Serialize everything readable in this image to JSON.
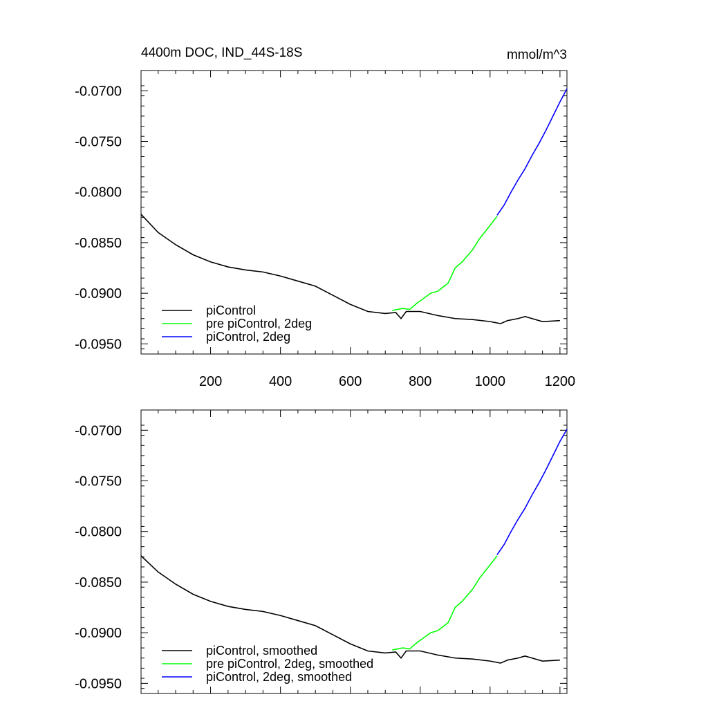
{
  "panel_title_left": "4400m DOC, IND_44S-18S",
  "panel_title_right": "mmol/m^3",
  "colors": {
    "piControl": "#000000",
    "pre_piControl_2deg": "#00ff00",
    "piControl_2deg": "#0000ff"
  },
  "chart_data": [
    {
      "type": "line",
      "title": "4400m DOC, IND_44S-18S",
      "units_label": "mmol/m^3",
      "xlim": [
        1,
        1220
      ],
      "ylim": [
        -0.096,
        -0.068
      ],
      "x_ticks": [
        200,
        400,
        600,
        800,
        1000,
        1200
      ],
      "x_tick_labels": [
        "200",
        "400",
        "600",
        "800",
        "1000",
        "1200"
      ],
      "y_ticks": [
        -0.07,
        -0.075,
        -0.08,
        -0.085,
        -0.09,
        -0.095
      ],
      "y_tick_labels": [
        "-0.0700",
        "-0.0750",
        "-0.0800",
        "-0.0850",
        "-0.0900",
        "-0.0950"
      ],
      "legend_position": "bottom-left",
      "series": [
        {
          "name": "piControl",
          "color": "#000000",
          "x": [
            1,
            50,
            100,
            150,
            200,
            250,
            300,
            350,
            400,
            450,
            500,
            550,
            600,
            650,
            700,
            730,
            745,
            760,
            800,
            850,
            900,
            950,
            1000,
            1030,
            1050,
            1080,
            1100,
            1150,
            1200
          ],
          "y": [
            -0.0822,
            -0.084,
            -0.0852,
            -0.0862,
            -0.0869,
            -0.0874,
            -0.0877,
            -0.0879,
            -0.0883,
            -0.0888,
            -0.0893,
            -0.0902,
            -0.0911,
            -0.0918,
            -0.092,
            -0.0919,
            -0.0925,
            -0.0918,
            -0.0918,
            -0.0922,
            -0.0925,
            -0.0926,
            -0.0928,
            -0.093,
            -0.0927,
            -0.0925,
            -0.0923,
            -0.0928,
            -0.0927
          ]
        },
        {
          "name": "pre piControl, 2deg",
          "color": "#00ff00",
          "x": [
            720,
            750,
            770,
            790,
            810,
            830,
            850,
            880,
            900,
            920,
            950,
            970,
            1000,
            1020
          ],
          "y": [
            -0.0917,
            -0.0915,
            -0.0916,
            -0.091,
            -0.0905,
            -0.09,
            -0.0898,
            -0.089,
            -0.0875,
            -0.0869,
            -0.0857,
            -0.0846,
            -0.0833,
            -0.0824
          ]
        },
        {
          "name": "piControl, 2deg",
          "color": "#0000ff",
          "x": [
            1020,
            1040,
            1060,
            1080,
            1100,
            1120,
            1140,
            1160,
            1180,
            1200,
            1220
          ],
          "y": [
            -0.0823,
            -0.0813,
            -0.08,
            -0.0788,
            -0.0777,
            -0.0764,
            -0.0752,
            -0.0739,
            -0.0725,
            -0.0711,
            -0.0698
          ]
        }
      ]
    },
    {
      "type": "line",
      "xlim": [
        1,
        1220
      ],
      "ylim": [
        -0.096,
        -0.068
      ],
      "x_ticks": [
        200,
        400,
        600,
        800,
        1000,
        1200
      ],
      "y_ticks": [
        -0.07,
        -0.075,
        -0.08,
        -0.085,
        -0.09,
        -0.095
      ],
      "y_tick_labels": [
        "-0.0700",
        "-0.0750",
        "-0.0800",
        "-0.0850",
        "-0.0900",
        "-0.0950"
      ],
      "legend_position": "bottom-left",
      "series": [
        {
          "name": "piControl, smoothed",
          "color": "#000000",
          "x": [
            1,
            50,
            100,
            150,
            200,
            250,
            300,
            350,
            400,
            450,
            500,
            550,
            600,
            650,
            700,
            730,
            745,
            760,
            800,
            850,
            900,
            950,
            1000,
            1030,
            1050,
            1080,
            1100,
            1150,
            1200
          ],
          "y": [
            -0.0824,
            -0.084,
            -0.0852,
            -0.0862,
            -0.0869,
            -0.0874,
            -0.0877,
            -0.0879,
            -0.0883,
            -0.0888,
            -0.0893,
            -0.0902,
            -0.0911,
            -0.0918,
            -0.092,
            -0.0919,
            -0.0925,
            -0.0918,
            -0.0918,
            -0.0922,
            -0.0925,
            -0.0926,
            -0.0928,
            -0.093,
            -0.0927,
            -0.0925,
            -0.0923,
            -0.0928,
            -0.0927
          ]
        },
        {
          "name": "pre piControl, 2deg, smoothed",
          "color": "#00ff00",
          "x": [
            720,
            750,
            770,
            790,
            810,
            830,
            850,
            880,
            900,
            920,
            950,
            970,
            1000,
            1020
          ],
          "y": [
            -0.0917,
            -0.0915,
            -0.0916,
            -0.091,
            -0.0905,
            -0.09,
            -0.0898,
            -0.089,
            -0.0875,
            -0.0869,
            -0.0857,
            -0.0846,
            -0.0833,
            -0.0824
          ]
        },
        {
          "name": "piControl, 2deg, smoothed",
          "color": "#0000ff",
          "x": [
            1020,
            1040,
            1060,
            1080,
            1100,
            1120,
            1140,
            1160,
            1180,
            1200,
            1220
          ],
          "y": [
            -0.0823,
            -0.0813,
            -0.08,
            -0.0788,
            -0.0777,
            -0.0764,
            -0.0752,
            -0.0739,
            -0.0725,
            -0.0711,
            -0.0699
          ]
        }
      ]
    }
  ]
}
